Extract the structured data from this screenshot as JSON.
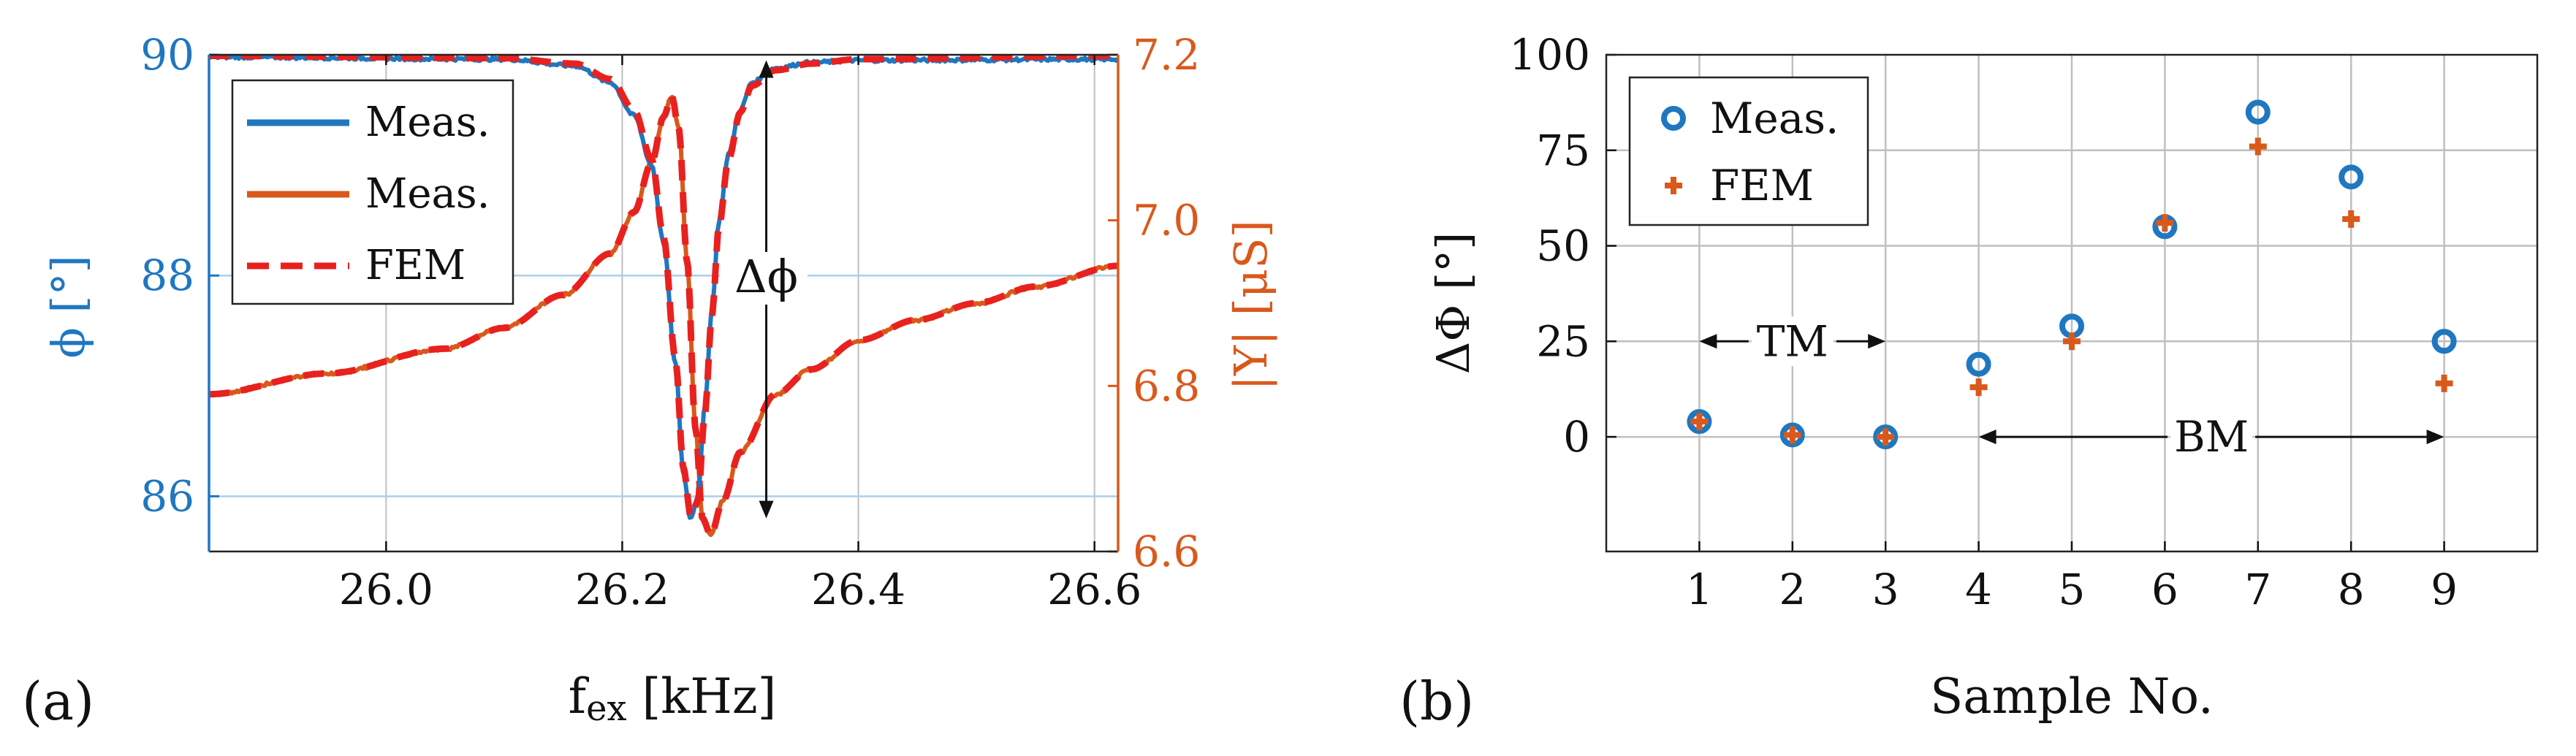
{
  "colors": {
    "blue": "#1f77c0",
    "orange": "#d9591b",
    "red": "#e8211f",
    "grid": "#bfbfbf",
    "hgrid_blue": "#a9cfee",
    "text": "#222222"
  },
  "chart_data": [
    {
      "panel": "(a)",
      "type": "line",
      "xlabel_main": "f",
      "xlabel_sub": "ex",
      "xlabel_unit": " [kHz]",
      "ylabel_left": "ϕ [°]",
      "ylabel_right": "|Y| [μS]",
      "xlim": [
        25.85,
        26.62
      ],
      "ylim_left": [
        85.5,
        90
      ],
      "ylim_right": [
        6.6,
        7.2
      ],
      "xticks": [
        "26.0",
        "26.2",
        "26.4",
        "26.6"
      ],
      "xtick_values": [
        26.0,
        26.2,
        26.4,
        26.6
      ],
      "yticks_left": [
        "86",
        "88",
        "90"
      ],
      "ytick_left_values": [
        86,
        88,
        90
      ],
      "yticks_right": [
        "6.6",
        "6.8",
        "7.0",
        "7.2"
      ],
      "ytick_right_values": [
        6.6,
        6.8,
        7.0,
        7.2
      ],
      "annotation": "Δϕ",
      "annotation_arrow": {
        "x": 26.322,
        "from": 89.95,
        "to": 85.8
      },
      "legend": [
        "Meas.",
        "Meas.",
        "FEM"
      ],
      "series": [
        {
          "name": "Meas.",
          "axis": "left",
          "color": "blue",
          "style": "solid",
          "noise": 0.03,
          "x": [
            25.85,
            26.1,
            26.16,
            26.19,
            26.21,
            26.225,
            26.235,
            26.245,
            26.252,
            26.258,
            26.264,
            26.27,
            26.276,
            26.282,
            26.29,
            26.3,
            26.31,
            26.33,
            26.36,
            26.4,
            26.62
          ],
          "y": [
            89.98,
            89.96,
            89.9,
            89.75,
            89.45,
            89.0,
            88.3,
            87.2,
            86.2,
            85.8,
            86.0,
            86.8,
            87.7,
            88.5,
            89.1,
            89.5,
            89.75,
            89.88,
            89.93,
            89.95,
            89.96
          ]
        },
        {
          "name": "FEM",
          "axis": "left",
          "color": "red",
          "style": "dashed",
          "noise": 0,
          "x": [
            25.85,
            26.1,
            26.16,
            26.19,
            26.21,
            26.225,
            26.235,
            26.245,
            26.252,
            26.258,
            26.264,
            26.27,
            26.276,
            26.282,
            26.29,
            26.3,
            26.31,
            26.33,
            26.36,
            26.4,
            26.62
          ],
          "y": [
            89.99,
            89.97,
            89.92,
            89.78,
            89.5,
            89.05,
            88.35,
            87.25,
            86.25,
            85.82,
            85.95,
            86.75,
            87.65,
            88.45,
            89.05,
            89.48,
            89.72,
            89.86,
            89.92,
            89.96,
            89.99
          ]
        },
        {
          "name": "Meas.",
          "axis": "right",
          "color": "orange",
          "style": "solid",
          "noise": 0.004,
          "x": [
            25.85,
            25.95,
            26.05,
            26.1,
            26.15,
            26.19,
            26.21,
            26.225,
            26.235,
            26.242,
            26.248,
            26.255,
            26.262,
            26.268,
            26.275,
            26.285,
            26.3,
            26.33,
            26.36,
            26.4,
            26.45,
            26.5,
            26.55,
            26.62
          ],
          "y": [
            6.79,
            6.815,
            6.845,
            6.87,
            6.91,
            6.96,
            7.01,
            7.07,
            7.125,
            7.15,
            7.11,
            6.95,
            6.75,
            6.64,
            6.62,
            6.66,
            6.72,
            6.79,
            6.82,
            6.855,
            6.88,
            6.9,
            6.92,
            6.945
          ]
        },
        {
          "name": "FEM",
          "axis": "right",
          "color": "red",
          "style": "dashed",
          "noise": 0,
          "x": [
            25.85,
            25.95,
            26.05,
            26.1,
            26.15,
            26.19,
            26.21,
            26.225,
            26.235,
            26.242,
            26.248,
            26.255,
            26.262,
            26.268,
            26.275,
            26.285,
            26.3,
            26.33,
            26.36,
            26.4,
            26.45,
            26.5,
            26.55,
            26.62
          ],
          "y": [
            6.79,
            6.815,
            6.845,
            6.87,
            6.91,
            6.96,
            7.01,
            7.07,
            7.125,
            7.15,
            7.11,
            6.95,
            6.75,
            6.64,
            6.62,
            6.66,
            6.72,
            6.79,
            6.82,
            6.855,
            6.88,
            6.9,
            6.92,
            6.945
          ]
        }
      ]
    },
    {
      "panel": "(b)",
      "type": "scatter",
      "xlabel": "Sample No.",
      "ylabel": "ΔΦ [°]",
      "xlim": [
        0,
        10
      ],
      "ylim": [
        -30,
        100
      ],
      "xticks": [
        "1",
        "2",
        "3",
        "4",
        "5",
        "6",
        "7",
        "8",
        "9"
      ],
      "xtick_values": [
        1,
        2,
        3,
        4,
        5,
        6,
        7,
        8,
        9
      ],
      "yticks": [
        "0",
        "25",
        "50",
        "75",
        "100"
      ],
      "ytick_values": [
        0,
        25,
        50,
        75,
        100
      ],
      "legend": [
        "Meas.",
        "FEM"
      ],
      "series": [
        {
          "name": "Meas.",
          "marker": "circle",
          "color": "blue",
          "x": [
            1,
            2,
            3,
            4,
            5,
            6,
            7,
            8,
            9
          ],
          "y": [
            4,
            0.5,
            0,
            19,
            29,
            55,
            85,
            68,
            25
          ]
        },
        {
          "name": "FEM",
          "marker": "plus",
          "color": "orange",
          "x": [
            1,
            2,
            3,
            4,
            5,
            6,
            7,
            8,
            9
          ],
          "y": [
            4,
            0.5,
            0,
            13,
            25,
            56,
            76,
            57,
            14
          ]
        }
      ],
      "annotations": [
        {
          "label": "TM",
          "from": 1,
          "to": 3,
          "y": 25
        },
        {
          "label": "BM",
          "from": 4,
          "to": 9,
          "y": 0
        }
      ]
    }
  ]
}
